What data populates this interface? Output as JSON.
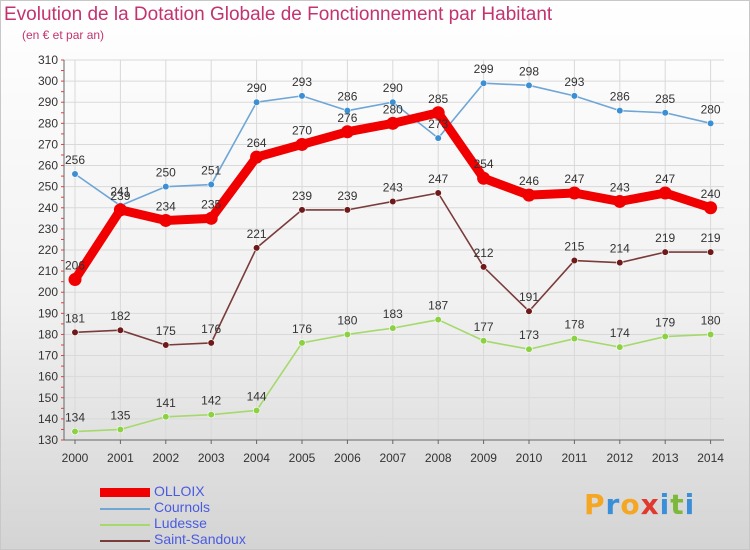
{
  "title": "Evolution de la Dotation Globale de Fonctionnement par Habitant",
  "subtitle": "(en € et par an)",
  "logo": {
    "letters": [
      "P",
      "r",
      "o",
      "x",
      "i",
      "t",
      "i"
    ],
    "colors": [
      "#f5a623",
      "#3a8fd8",
      "#f5a623",
      "#e03a2f",
      "#3a8fd8",
      "#7cb83a",
      "#3a8fd8"
    ]
  },
  "chart_data": {
    "type": "line",
    "x": [
      "2000",
      "2001",
      "2002",
      "2003",
      "2004",
      "2005",
      "2006",
      "2007",
      "2008",
      "2009",
      "2010",
      "2011",
      "2012",
      "2013",
      "2014"
    ],
    "ylim": [
      130,
      310
    ],
    "yticks": [
      130,
      140,
      150,
      160,
      170,
      180,
      190,
      200,
      210,
      220,
      230,
      240,
      250,
      260,
      270,
      280,
      290,
      300,
      310
    ],
    "grid": true,
    "legend_position": "bottom-left",
    "series": [
      {
        "name": "Cournols",
        "color": "#6fa6d6",
        "marker": "#3d8fd4",
        "values": [
          256,
          241,
          250,
          251,
          290,
          293,
          286,
          290,
          273,
          299,
          298,
          293,
          286,
          285,
          280
        ],
        "labels": [
          "256",
          "241",
          "250",
          "251",
          "290",
          "293",
          "286",
          "290",
          "273",
          "299",
          "298",
          "293",
          "286",
          "285",
          "280"
        ]
      },
      {
        "name": "Ludesse",
        "color": "#a5d96b",
        "marker": "#8bd143",
        "values": [
          134,
          135,
          141,
          142,
          144,
          176,
          180,
          183,
          187,
          177,
          173,
          178,
          174,
          179,
          180
        ],
        "labels": [
          "134",
          "135",
          "141",
          "142",
          "144",
          "176",
          "180",
          "183",
          "187",
          "177",
          "173",
          "178",
          "174",
          "179",
          "180"
        ]
      },
      {
        "name": "Saint-Sandoux",
        "color": "#7a3b3b",
        "marker": "#6e1a1a",
        "values": [
          181,
          182,
          175,
          176,
          221,
          239,
          239,
          243,
          247,
          212,
          191,
          215,
          214,
          219,
          219
        ],
        "labels": [
          "181",
          "182",
          "175",
          "176",
          "221",
          "239",
          "239",
          "243",
          "247",
          "212",
          "191",
          "215",
          "214",
          "219",
          "219"
        ]
      },
      {
        "name": "OLLOIX",
        "color": "#f00000",
        "marker": "#f00000",
        "values": [
          206,
          239,
          234,
          235,
          264,
          270,
          276,
          280,
          285,
          254,
          246,
          247,
          243,
          247,
          240
        ],
        "labels": [
          "206",
          "239",
          "234",
          "235",
          "264",
          "270",
          "276",
          "280",
          "285",
          "254",
          "246",
          "247",
          "243",
          "247",
          "240"
        ]
      }
    ],
    "legend_order": [
      "OLLOIX",
      "Cournols",
      "Ludesse",
      "Saint-Sandoux"
    ]
  }
}
